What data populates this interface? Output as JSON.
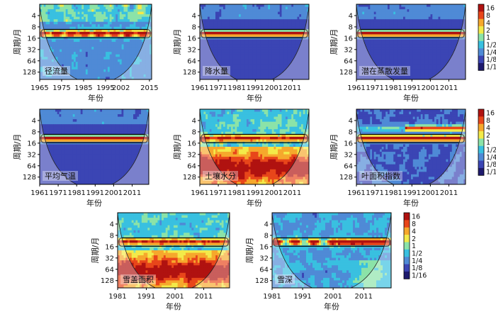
{
  "figure": {
    "xlabel": "年份",
    "ylabel": "周期/月",
    "palette": [
      "#1e1a6e",
      "#3b45b4",
      "#4f8ad6",
      "#39c0e0",
      "#8be3a8",
      "#f3ea49",
      "#f6a82c",
      "#e8461a",
      "#b01210"
    ]
  },
  "colorbar": {
    "labels": [
      "16",
      "8",
      "4",
      "2",
      "1",
      "1/2",
      "1/4",
      "1/8",
      "1/16"
    ]
  },
  "chart_data": [
    {
      "id": "runoff",
      "type": "heatmap",
      "title": "径流量",
      "xlabel": "年份",
      "ylabel": "周期/月",
      "xlim": [
        1965,
        2016
      ],
      "xticks": [
        "1965",
        "1975",
        "1985",
        "1995",
        "2002",
        "2015"
      ],
      "xtick_values": [
        1965,
        1975,
        1985,
        1995,
        2002,
        2015
      ],
      "yticks": [
        4,
        8,
        16,
        32,
        64,
        128
      ],
      "ylim": [
        2,
        200
      ],
      "band_period": 12,
      "pattern": "annual_patchy",
      "colorbar": false
    },
    {
      "id": "precip",
      "type": "heatmap",
      "title": "降水量",
      "xlabel": "年份",
      "ylabel": "周期/月",
      "xlim": [
        1961,
        2020
      ],
      "xticks": [
        "1961",
        "1971",
        "1981",
        "1991",
        "2001",
        "2011"
      ],
      "xtick_values": [
        1961,
        1971,
        1981,
        1991,
        2001,
        2011
      ],
      "yticks": [
        4,
        8,
        16,
        32,
        64,
        128
      ],
      "ylim": [
        2,
        200
      ],
      "band_period": 12,
      "pattern": "annual_clean",
      "colorbar": false
    },
    {
      "id": "pet",
      "type": "heatmap",
      "title": "潜在蒸散发量",
      "xlabel": "年份",
      "ylabel": "周期/月",
      "xlim": [
        1961,
        2020
      ],
      "xticks": [
        "1961",
        "1971",
        "1981",
        "1991",
        "2001",
        "2011"
      ],
      "xtick_values": [
        1961,
        1971,
        1981,
        1991,
        2001,
        2011
      ],
      "yticks": [
        4,
        8,
        16,
        32,
        64,
        128
      ],
      "ylim": [
        2,
        200
      ],
      "band_period": 12,
      "pattern": "annual_clean",
      "colorbar": true
    },
    {
      "id": "temp",
      "type": "heatmap",
      "title": "平均气温",
      "xlabel": "年份",
      "ylabel": "周期/月",
      "xlim": [
        1961,
        2020
      ],
      "xticks": [
        "1961",
        "1971",
        "1981",
        "1991",
        "2001",
        "2011"
      ],
      "xtick_values": [
        1961,
        1971,
        1981,
        1991,
        2001,
        2011
      ],
      "yticks": [
        4,
        8,
        16,
        32,
        64,
        128
      ],
      "ylim": [
        2,
        200
      ],
      "band_period": 12,
      "pattern": "annual_clean",
      "colorbar": false
    },
    {
      "id": "soil",
      "type": "heatmap",
      "title": "土壤水分",
      "xlabel": "年份",
      "ylabel": "周期/月",
      "xlim": [
        1961,
        2020
      ],
      "xticks": [
        "1961",
        "1971",
        "1981",
        "1991",
        "2001",
        "2011"
      ],
      "xtick_values": [
        1961,
        1971,
        1981,
        1991,
        2001,
        2011
      ],
      "yticks": [
        4,
        8,
        16,
        32,
        64,
        128
      ],
      "ylim": [
        2,
        200
      ],
      "band_period": 12,
      "pattern": "noisy_warm",
      "colorbar": false
    },
    {
      "id": "lai",
      "type": "heatmap",
      "title": "叶面积指数",
      "xlabel": "年份",
      "ylabel": "周期/月",
      "xlim": [
        1961,
        2020
      ],
      "xticks": [
        "1961",
        "1971",
        "1981",
        "1991",
        "2001",
        "2011"
      ],
      "xtick_values": [
        1961,
        1971,
        1981,
        1991,
        2001,
        2011
      ],
      "yticks": [
        4,
        8,
        16,
        32,
        64,
        128
      ],
      "ylim": [
        2,
        200
      ],
      "band_period": 12,
      "pattern": "lai",
      "colorbar": true
    },
    {
      "id": "snowarea",
      "type": "heatmap",
      "title": "雪盖面积",
      "xlabel": "年份",
      "ylabel": "周期/月",
      "xlim": [
        1981,
        2020
      ],
      "xticks": [
        "1981",
        "1991",
        "2001",
        "2011"
      ],
      "xtick_values": [
        1981,
        1991,
        2001,
        2011
      ],
      "yticks": [
        4,
        8,
        16,
        32,
        64,
        128
      ],
      "ylim": [
        2,
        200
      ],
      "band_period": 12,
      "pattern": "noisy_warm",
      "colorbar": false
    },
    {
      "id": "snowdepth",
      "type": "heatmap",
      "title": "雪深",
      "xlabel": "年份",
      "ylabel": "周期/月",
      "xlim": [
        1981,
        2020
      ],
      "xticks": [
        "1981",
        "1991",
        "2001",
        "2011"
      ],
      "xtick_values": [
        1981,
        1991,
        2001,
        2011
      ],
      "yticks": [
        4,
        8,
        16,
        32,
        64,
        128
      ],
      "ylim": [
        2,
        200
      ],
      "band_period": 12,
      "pattern": "snowdepth",
      "colorbar": true
    }
  ]
}
